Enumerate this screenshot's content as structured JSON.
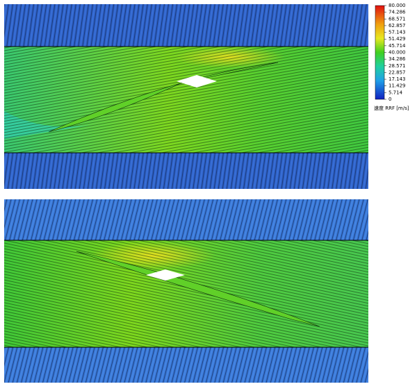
{
  "colorbar": {
    "label": "速度 RRF [m/s]",
    "lim": [
      0,
      80
    ],
    "ticks": [
      {
        "value": 80,
        "label": "80.000"
      },
      {
        "value": 74.286,
        "label": "74.286"
      },
      {
        "value": 68.571,
        "label": "68.571"
      },
      {
        "value": 62.857,
        "label": "62.857"
      },
      {
        "value": 57.143,
        "label": "57.143"
      },
      {
        "value": 51.429,
        "label": "51.429"
      },
      {
        "value": 45.714,
        "label": "45.714"
      },
      {
        "value": 40,
        "label": "40.000"
      },
      {
        "value": 34.286,
        "label": "34.286"
      },
      {
        "value": 28.571,
        "label": "28.571"
      },
      {
        "value": 22.857,
        "label": "22.857"
      },
      {
        "value": 17.143,
        "label": "17.143"
      },
      {
        "value": 11.429,
        "label": "11.429"
      },
      {
        "value": 5.714,
        "label": "5.714"
      },
      0
    ]
  }
}
